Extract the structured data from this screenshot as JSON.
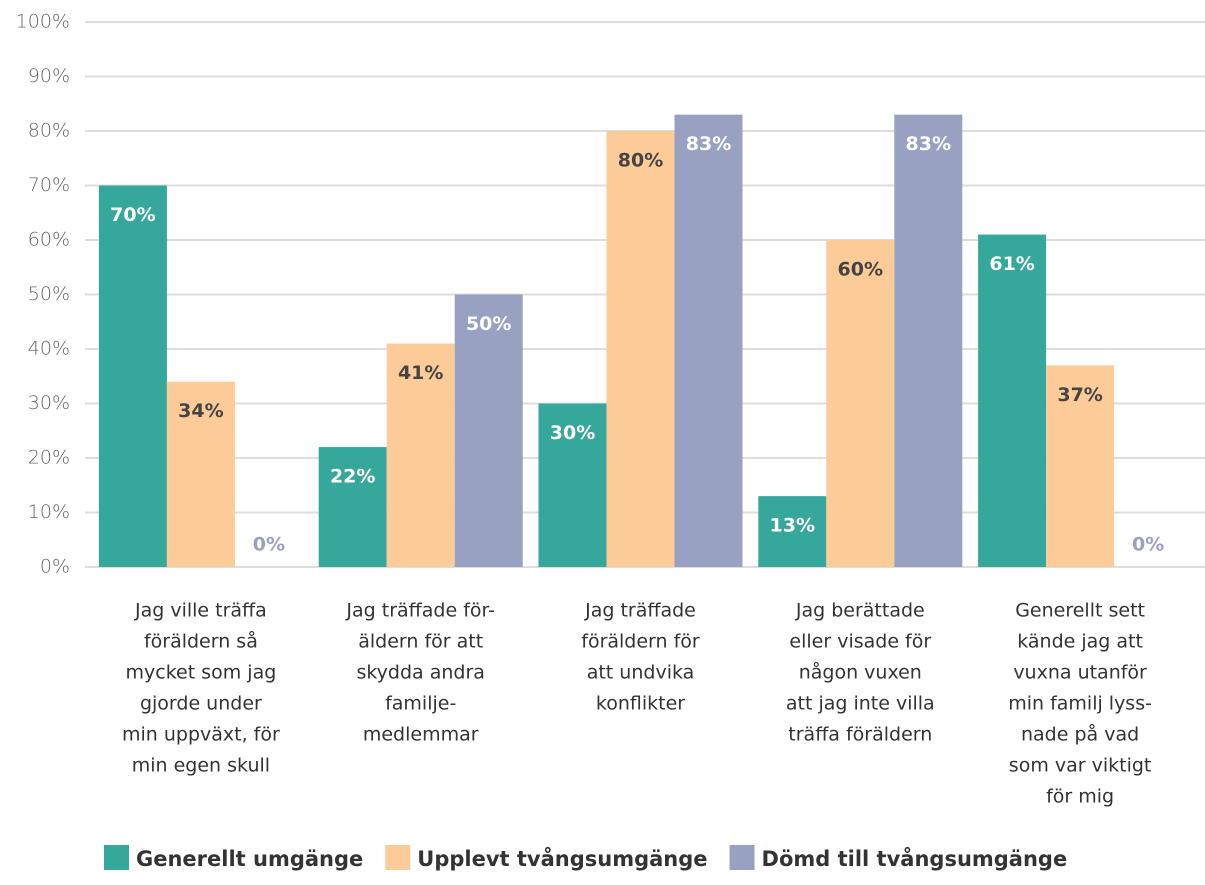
{
  "chart_data": {
    "type": "bar",
    "categories": [
      [
        "Jag ville träffa",
        "föräldern så",
        "mycket som jag",
        "gjorde under",
        "min uppväxt, för",
        "min egen skull"
      ],
      [
        "Jag träffade för-",
        "äldern för att",
        "skydda andra",
        "familje-",
        "medlemmar"
      ],
      [
        "Jag träffade",
        "föräldern för",
        "att undvika",
        "konflikter"
      ],
      [
        "Jag berättade",
        "eller visade för",
        "någon vuxen",
        "att jag inte villa",
        "träffa föräldern"
      ],
      [
        "Generellt sett",
        "kände jag att",
        "vuxna utanför",
        "min familj lyss-",
        "nade på vad",
        "som var viktigt",
        "för mig"
      ]
    ],
    "series": [
      {
        "name": "Generellt umgänge",
        "color": "#35a89b",
        "values": [
          70,
          22,
          30,
          13,
          61
        ],
        "value_labels": [
          "70%",
          "22%",
          "30%",
          "13%",
          "61%"
        ]
      },
      {
        "name": "Upplevt tvångsumgänge",
        "color": "#fdcb98",
        "values": [
          34,
          41,
          80,
          60,
          37
        ],
        "value_labels": [
          "34%",
          "41%",
          "80%",
          "60%",
          "37%"
        ]
      },
      {
        "name": "Dömd till tvångsumgänge",
        "color": "#98a1c1",
        "values": [
          0,
          50,
          83,
          83,
          0
        ],
        "value_labels": [
          "0%",
          "50%",
          "83%",
          "83%",
          "0%"
        ]
      }
    ],
    "ylim": [
      0,
      100
    ],
    "yticks": [
      {
        "value": 0,
        "label": "0%"
      },
      {
        "value": 10,
        "label": "10%"
      },
      {
        "value": 20,
        "label": "20%"
      },
      {
        "value": 30,
        "label": "30%"
      },
      {
        "value": 40,
        "label": "40%"
      },
      {
        "value": 50,
        "label": "50%"
      },
      {
        "value": 60,
        "label": "60%"
      },
      {
        "value": 70,
        "label": "70%"
      },
      {
        "value": 80,
        "label": "80%"
      },
      {
        "value": 90,
        "label": "90%"
      },
      {
        "value": 100,
        "label": "100%"
      }
    ],
    "grid": true,
    "legend": "bottom"
  }
}
